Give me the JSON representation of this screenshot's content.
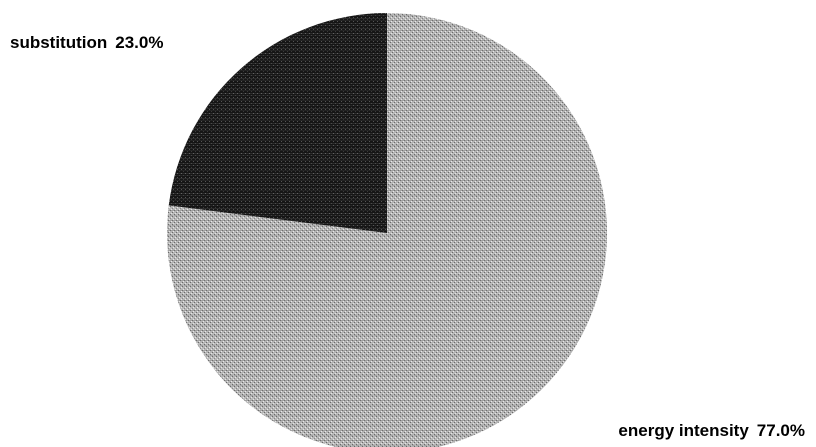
{
  "chart_data": {
    "type": "pie",
    "slices": [
      {
        "label": "energy intensity",
        "value": 77.0,
        "value_text": "77.0%",
        "color": "#a8a8a8",
        "pattern": "light-dither"
      },
      {
        "label": "substitution",
        "value": 23.0,
        "value_text": "23.0%",
        "color": "#1c1c1c",
        "pattern": "dark-dither"
      }
    ],
    "start_angle_deg": 0,
    "direction": "clockwise",
    "legend": "none",
    "title": ""
  }
}
